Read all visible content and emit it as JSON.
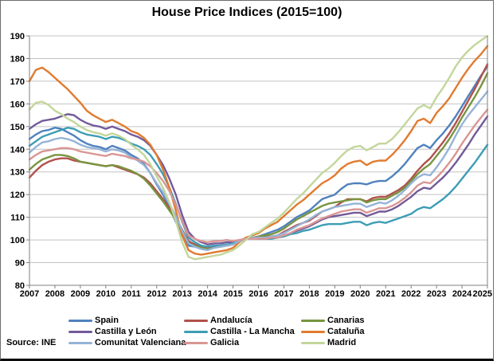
{
  "title": "House Price Indices (2015=100)",
  "source_label": "Source: INE",
  "chart_data": {
    "type": "line",
    "title": "House Price Indices (2015=100)",
    "x_start_year": 2007,
    "x_end_year": 2025,
    "points_per_year": 4,
    "x_tick_labels": [
      "2007",
      "2008",
      "2009",
      "2010",
      "2011",
      "2012",
      "2013",
      "2014",
      "2015",
      "2016",
      "2017",
      "2018",
      "2019",
      "2020",
      "2021",
      "2022",
      "2023",
      "2024",
      "2025"
    ],
    "y_min": 80,
    "y_max": 190,
    "y_step": 10,
    "grid": true,
    "legend_position": "bottom",
    "gridline_color": "#c3c3c3",
    "axis_color": "#7f7f7f",
    "series": [
      {
        "name": "Spain",
        "color": "#4F81BD",
        "values": [
          144.5,
          146.5,
          148,
          148.5,
          149.5,
          149,
          147.5,
          146,
          144,
          142.5,
          141.5,
          141,
          140,
          141.5,
          140.5,
          139.5,
          137.5,
          136,
          133.5,
          129.5,
          124.5,
          120,
          114.5,
          108,
          102,
          97.5,
          97,
          96.5,
          96.5,
          97.5,
          97.5,
          98,
          98.5,
          99.5,
          100.5,
          101,
          101.5,
          102.5,
          103.5,
          104.5,
          106,
          108,
          110,
          111.5,
          113,
          115.5,
          118,
          119,
          120,
          122.5,
          124.5,
          125,
          125,
          124.5,
          125.5,
          126,
          126,
          128,
          130.5,
          133.5,
          137,
          140.5,
          142,
          140.5,
          144,
          147,
          150.5,
          154.5,
          159,
          163.5,
          168,
          172.5,
          176.5
        ]
      },
      {
        "name": "Andalucía",
        "color": "#B1514D",
        "values": [
          127.5,
          130.5,
          133,
          134.5,
          135.5,
          136,
          136,
          135,
          134.5,
          134,
          133.5,
          133,
          132.5,
          133,
          132,
          131,
          130,
          129,
          127.5,
          125,
          121.5,
          118,
          114,
          110,
          104.5,
          99.5,
          98,
          97,
          96.5,
          97,
          97,
          97.5,
          98,
          99.5,
          100.5,
          101,
          101,
          101.5,
          101.5,
          102,
          103.5,
          105,
          106.5,
          107.5,
          108.5,
          110.5,
          112.5,
          113.5,
          114.5,
          116.5,
          118,
          118,
          118,
          117,
          118.5,
          119,
          119,
          120.5,
          122,
          124,
          127,
          130.5,
          133.5,
          136,
          139.5,
          143,
          147,
          151.5,
          156.5,
          161.5,
          166.5,
          172,
          177.5
        ]
      },
      {
        "name": "Canarias",
        "color": "#789440",
        "values": [
          131,
          133.5,
          135.5,
          136.5,
          137.5,
          137.5,
          137,
          136,
          134.5,
          134,
          133.5,
          133,
          132.5,
          133,
          132.5,
          131.5,
          130.5,
          129,
          127,
          124,
          120.5,
          117,
          113,
          109,
          103.5,
          98.5,
          97.5,
          96.5,
          96,
          96.5,
          97,
          97.5,
          98,
          99.5,
          100.5,
          101,
          101.5,
          102,
          102.5,
          103.5,
          105,
          107,
          109,
          110.5,
          112,
          113.5,
          115,
          116,
          116.5,
          117,
          117.5,
          118,
          118,
          116.5,
          117.5,
          118,
          118,
          119.5,
          121,
          123,
          126,
          129,
          131.5,
          133.5,
          137,
          140.5,
          144.5,
          149,
          154,
          158.5,
          163,
          168,
          173.5
        ]
      },
      {
        "name": "Castilla y León",
        "color": "#735A99",
        "values": [
          149,
          151,
          152.5,
          153,
          153.5,
          154.5,
          155.5,
          155,
          153,
          151.5,
          150.5,
          150,
          149,
          150,
          149,
          148,
          146.5,
          145.5,
          144,
          141.5,
          137.5,
          133,
          127,
          120,
          111,
          103.5,
          100.5,
          99,
          98,
          98.5,
          98.5,
          99,
          99,
          99.5,
          100.5,
          101,
          100.5,
          100.5,
          101,
          101,
          102,
          103,
          104,
          105,
          106,
          107.5,
          109,
          110,
          110.5,
          111,
          111.5,
          112,
          112,
          110.5,
          111.5,
          112.5,
          112.5,
          113.5,
          115,
          117,
          119,
          121.5,
          123,
          122.5,
          125,
          127.5,
          130.5,
          134,
          138,
          142,
          146.5,
          150.5,
          154.5
        ]
      },
      {
        "name": "Castilla - La Mancha",
        "color": "#3D9DB5",
        "values": [
          141.5,
          143.5,
          145.5,
          146.5,
          147.5,
          148.5,
          149.5,
          149,
          147.5,
          146.5,
          146,
          145.5,
          144.5,
          145.5,
          145,
          144,
          142.5,
          141.5,
          140,
          137.5,
          133.5,
          129,
          123,
          116,
          108,
          101,
          99,
          97.5,
          97,
          97.5,
          97.5,
          98,
          98.5,
          99.5,
          100.5,
          101,
          100.5,
          100.5,
          100.5,
          101,
          101.5,
          102.5,
          103,
          104,
          104.5,
          105.5,
          106.5,
          107,
          107,
          107,
          107.5,
          108,
          108,
          106.5,
          107.5,
          108,
          107.5,
          108.5,
          109.5,
          110.5,
          111.5,
          113.5,
          114.5,
          114,
          116,
          118,
          120.5,
          123.5,
          127,
          130.5,
          134,
          138,
          142
        ]
      },
      {
        "name": "Cataluña",
        "color": "#E07B2F",
        "values": [
          170,
          175,
          176,
          174,
          171.5,
          169,
          166.5,
          163.5,
          160.5,
          157,
          155,
          153.5,
          152,
          153,
          151.5,
          150,
          148,
          147,
          145,
          142,
          137.5,
          131,
          123,
          113,
          102,
          95.5,
          94,
          93.5,
          94,
          94.5,
          95,
          95.5,
          96.5,
          99,
          101,
          102,
          103,
          105,
          106.5,
          108,
          110.5,
          113,
          115.5,
          117.5,
          120,
          122.5,
          125,
          126.5,
          128.5,
          131.5,
          133.5,
          134.5,
          135,
          133,
          134.5,
          135,
          135,
          137.5,
          140.5,
          144,
          148,
          152.5,
          153.5,
          151.5,
          156,
          159,
          162.5,
          167,
          171.5,
          175.5,
          179,
          182,
          185.5
        ]
      },
      {
        "name": "Comunitat Valenciana",
        "color": "#95B3D7",
        "values": [
          138.5,
          141,
          143,
          143.5,
          144.5,
          145,
          144.5,
          143.5,
          142,
          141,
          140.5,
          140,
          139,
          140,
          139.5,
          138.5,
          136.5,
          135,
          133,
          129.5,
          125,
          121,
          116,
          110.5,
          104,
          98.5,
          97,
          96,
          95.5,
          96.5,
          97,
          97.5,
          98,
          99.5,
          100.5,
          101,
          101,
          101,
          101.5,
          102,
          103,
          104.5,
          106,
          107.5,
          109,
          111,
          112.5,
          113.5,
          114.5,
          115,
          115.5,
          116,
          116,
          114.5,
          115.5,
          116.5,
          116,
          117.5,
          119.5,
          122,
          125,
          127.5,
          129,
          128.5,
          132,
          136,
          140.5,
          146,
          151,
          155,
          158.5,
          162,
          165.5
        ]
      },
      {
        "name": "Galicia",
        "color": "#D99694",
        "values": [
          135.5,
          137.5,
          139,
          139.5,
          140,
          140.5,
          140.5,
          140,
          139,
          138.5,
          138,
          137.5,
          137,
          138,
          137.5,
          137,
          136,
          135.5,
          134.5,
          132.5,
          129.5,
          126,
          121.5,
          115.5,
          108.5,
          102,
          100.5,
          99.5,
          99,
          99.5,
          99.5,
          100,
          99.5,
          100,
          100.5,
          100.5,
          100.5,
          100.5,
          101,
          101,
          102,
          103,
          104.5,
          105.5,
          106.5,
          108,
          109.5,
          110.5,
          111.5,
          112.5,
          113,
          113.5,
          113.5,
          112,
          113,
          114,
          114,
          115,
          116.5,
          118.5,
          121,
          124,
          125.5,
          125,
          127.5,
          130.5,
          134,
          138,
          142.5,
          146.5,
          150.5,
          154,
          157.5
        ]
      },
      {
        "name": "Madrid",
        "color": "#C3D69B",
        "values": [
          157.5,
          160.5,
          161,
          159.5,
          157,
          155.5,
          153.5,
          152,
          150,
          148.5,
          147.5,
          147,
          146,
          147,
          146,
          144.5,
          142,
          140,
          137.5,
          133.5,
          128,
          123,
          116.5,
          108.5,
          99,
          92.5,
          91.5,
          92,
          92.5,
          93,
          93.5,
          94.5,
          95.5,
          97.5,
          100,
          102.5,
          103.5,
          105.5,
          107.5,
          109.5,
          112,
          115,
          118,
          120.5,
          123.5,
          126.5,
          129.5,
          131.5,
          134,
          137,
          139.5,
          141,
          141.5,
          139.5,
          141,
          142.5,
          142.5,
          144.5,
          147.5,
          151,
          154.5,
          158,
          159.5,
          158,
          163,
          167,
          171.5,
          176.5,
          180.5,
          183.5,
          186,
          188,
          190
        ]
      }
    ]
  }
}
